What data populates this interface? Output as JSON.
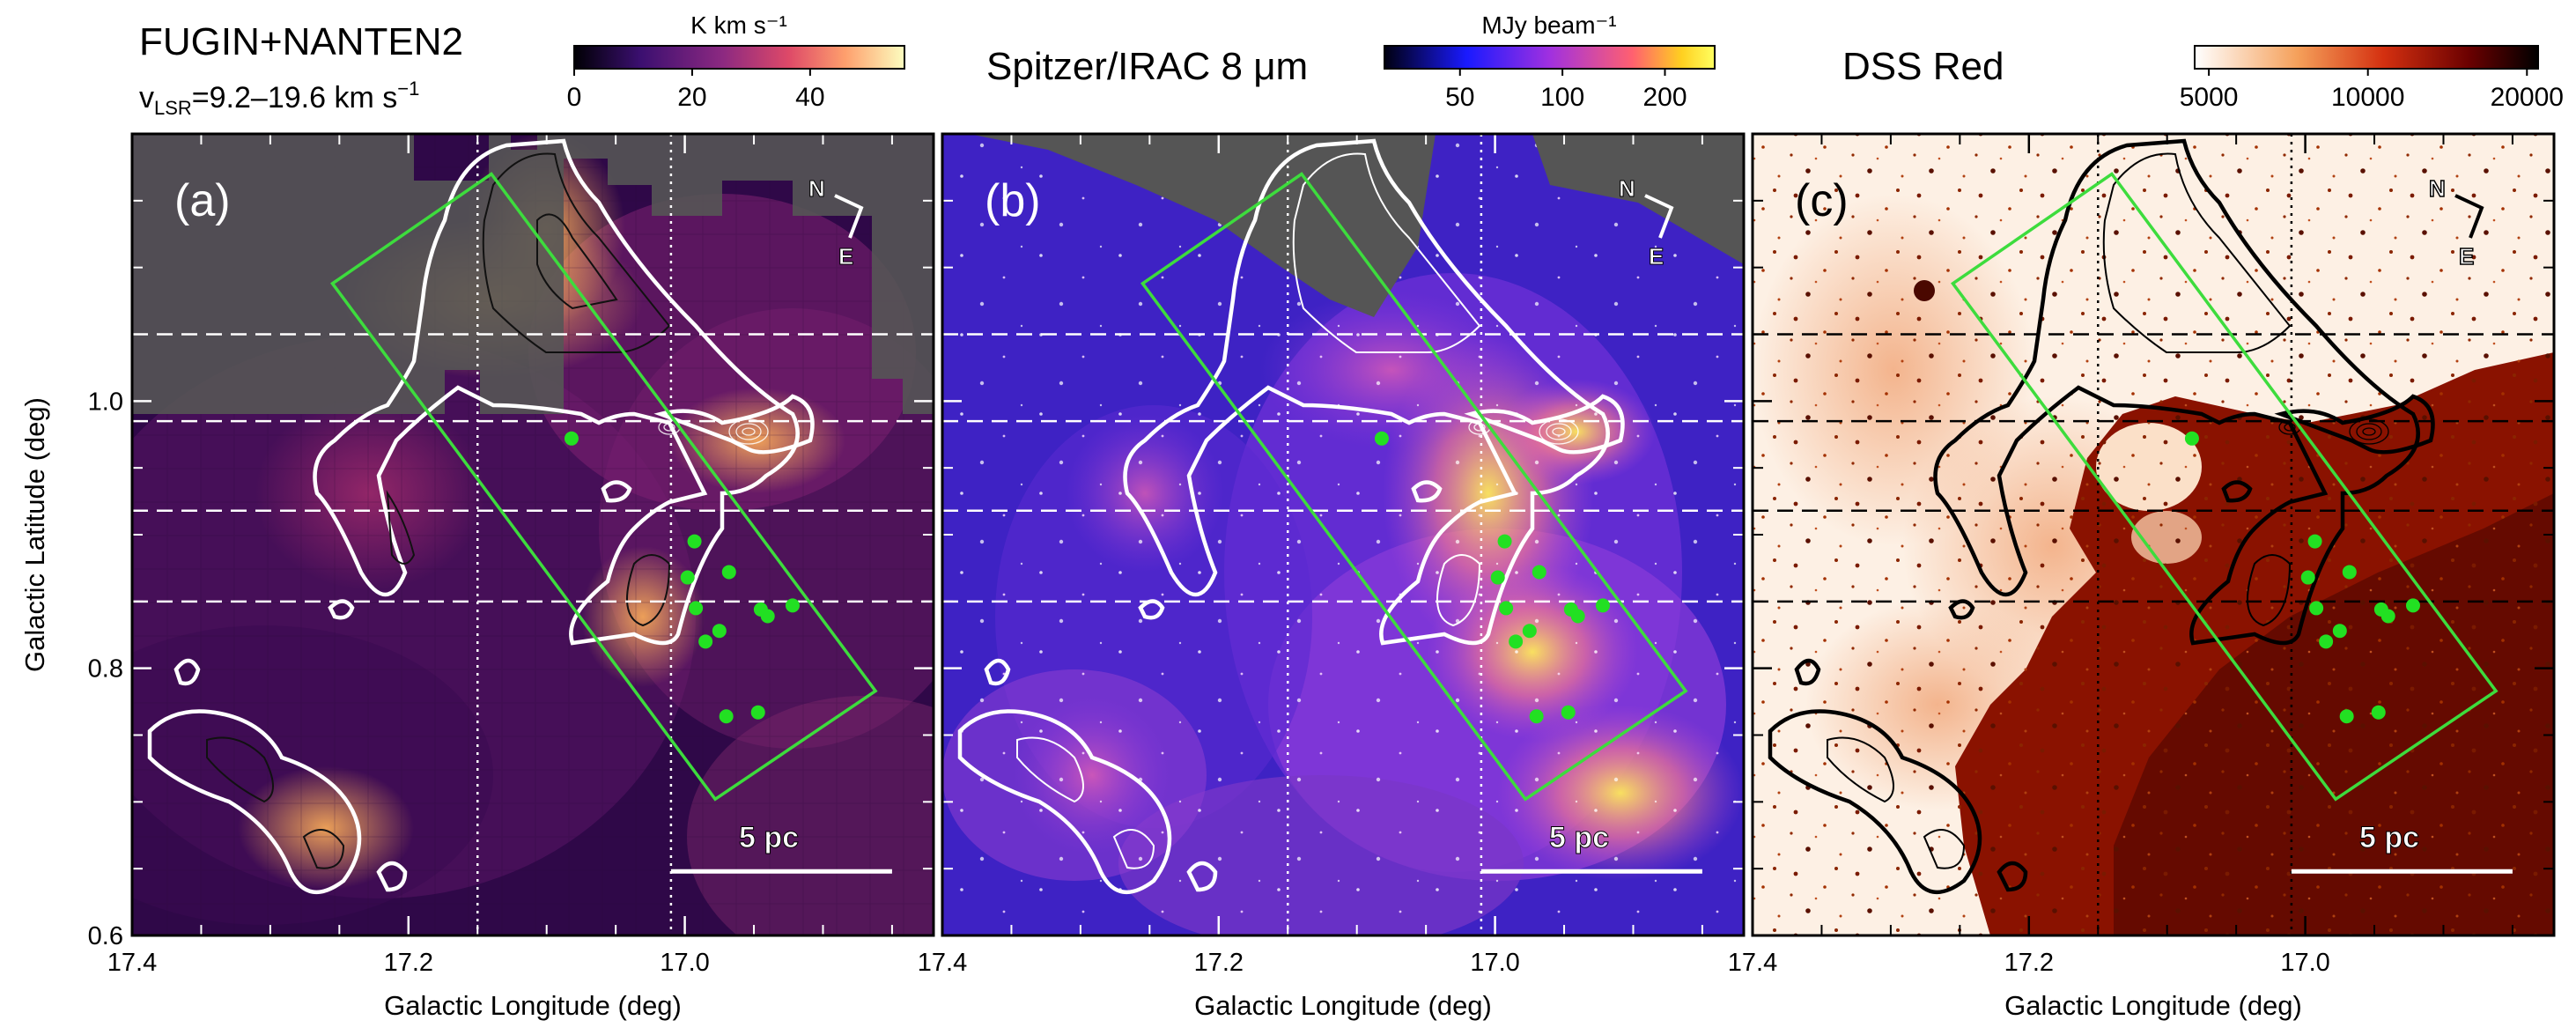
{
  "header": {
    "dataset_a_line1": "FUGIN+NANTEN2",
    "dataset_a_line2_prefix": "v",
    "dataset_a_line2_sub": "LSR",
    "dataset_a_line2_suffix": "=9.2–19.6 km s",
    "dataset_a_line2_sup": "−1",
    "dataset_b": "Spitzer/IRAC  8 μm",
    "dataset_c": "DSS Red"
  },
  "colorbars": [
    {
      "unit": "K km s⁻¹",
      "ticks": [
        "0",
        "20",
        "40"
      ],
      "tick_values": [
        0,
        20,
        40
      ],
      "range": [
        0,
        56
      ],
      "scale": "linear",
      "colormap": "inferno-like"
    },
    {
      "unit": "MJy beam⁻¹",
      "ticks": [
        "50",
        "100",
        "200"
      ],
      "tick_values": [
        50,
        100,
        200
      ],
      "range": [
        30,
        280
      ],
      "scale": "log",
      "colormap": "gnuplot2-like"
    },
    {
      "unit": "",
      "ticks": [
        "5000",
        "10000",
        "20000"
      ],
      "tick_values": [
        5000,
        10000,
        20000
      ],
      "range": [
        4700,
        21000
      ],
      "scale": "log",
      "colormap": "gist_heat_r-like"
    }
  ],
  "panels": [
    {
      "label": "(a)",
      "ylabel": "Galactic Latitude (deg)",
      "xlabel": "Galactic Longitude (deg)",
      "xticks": [
        "17.4",
        "17.2",
        "17.0"
      ],
      "yticks": [
        "0.6",
        "0.8",
        "1.0"
      ],
      "compass": {
        "n": "N",
        "e": "E"
      },
      "scalebar": "5 pc",
      "bg": "#3a0a52"
    },
    {
      "label": "(b)",
      "ylabel": "",
      "xlabel": "Galactic Longitude (deg)",
      "xticks": [
        "17.4",
        "17.2",
        "17.0"
      ],
      "yticks": [],
      "compass": {
        "n": "N",
        "e": "E"
      },
      "scalebar": "5 pc",
      "bg": "#4b2cc8"
    },
    {
      "label": "(c)",
      "ylabel": "",
      "xlabel": "Galactic Longitude (deg)",
      "xticks": [
        "17.4",
        "17.2",
        "17.0"
      ],
      "yticks": [],
      "compass": {
        "n": "N",
        "e": "E"
      },
      "scalebar": "5 pc",
      "bg": "#fbe7d6"
    }
  ],
  "axes": {
    "xlim": [
      17.4,
      16.82
    ],
    "ylim": [
      0.6,
      1.2
    ],
    "x_major": [
      17.4,
      17.2,
      17.0
    ],
    "x_minor": [
      17.35,
      17.3,
      17.25,
      17.15,
      17.1,
      17.05,
      16.95,
      16.9,
      16.85
    ],
    "y_major": [
      0.6,
      0.8,
      1.0
    ],
    "y_minor": [
      0.65,
      0.7,
      0.75,
      0.85,
      0.9,
      0.95,
      1.05,
      1.1,
      1.15
    ],
    "vertical_dotted_l": [
      17.15,
      17.01
    ],
    "horizontal_dashed_b": [
      1.05,
      0.985,
      0.918,
      0.85
    ],
    "scalebar_l": [
      17.01,
      16.85
    ],
    "scalebar_b": 0.648,
    "rectangle": [
      [
        17.255,
        1.088
      ],
      [
        17.14,
        1.17
      ],
      [
        16.862,
        0.783
      ],
      [
        16.978,
        0.702
      ]
    ],
    "rectangle_color": "#3ddc3d",
    "green_dot_color": "#22e022"
  },
  "sources": [
    {
      "l": 17.082,
      "b": 0.972
    },
    {
      "l": 16.993,
      "b": 0.895
    },
    {
      "l": 16.998,
      "b": 0.868
    },
    {
      "l": 16.968,
      "b": 0.872
    },
    {
      "l": 16.992,
      "b": 0.845
    },
    {
      "l": 16.945,
      "b": 0.844
    },
    {
      "l": 16.922,
      "b": 0.847
    },
    {
      "l": 16.94,
      "b": 0.839
    },
    {
      "l": 16.975,
      "b": 0.828
    },
    {
      "l": 16.985,
      "b": 0.82
    },
    {
      "l": 16.97,
      "b": 0.764
    },
    {
      "l": 16.947,
      "b": 0.767
    }
  ]
}
